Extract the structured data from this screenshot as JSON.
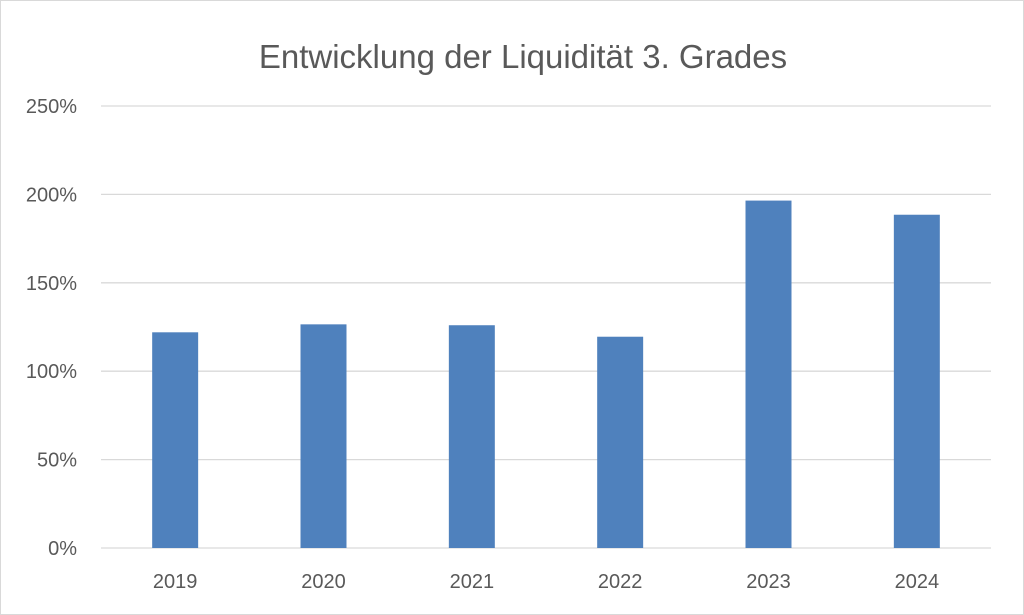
{
  "chart_data": {
    "type": "bar",
    "title": "Entwicklung der Liquidität 3. Grades",
    "xlabel": "",
    "ylabel": "",
    "categories": [
      "2019",
      "2020",
      "2021",
      "2022",
      "2023",
      "2024"
    ],
    "values": [
      122,
      126.5,
      126,
      119.5,
      196.5,
      188.5
    ],
    "value_unit": "%",
    "ylim": [
      0,
      250
    ],
    "yticks": [
      0,
      50,
      100,
      150,
      200,
      250
    ],
    "ytick_labels": [
      "0%",
      "50%",
      "100%",
      "150%",
      "200%",
      "250%"
    ],
    "grid": true,
    "legend": "none",
    "bar_color": "#4f81bd"
  }
}
